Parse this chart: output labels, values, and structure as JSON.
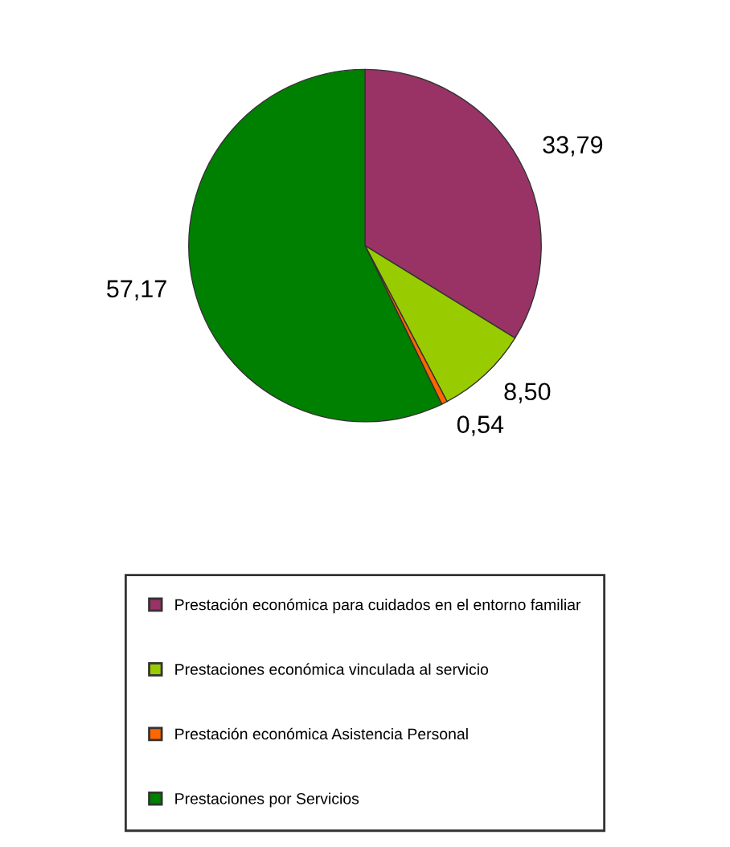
{
  "chart_data": {
    "type": "pie",
    "categories": [
      "Prestación económica para cuidados en el entorno familiar",
      "Prestaciones económica vinculada al servicio",
      "Prestación económica Asistencia Personal",
      "Prestaciones por Servicios"
    ],
    "values": [
      33.79,
      8.5,
      0.54,
      57.17
    ],
    "value_labels": [
      "33,79",
      "8,50",
      "0,54",
      "57,17"
    ],
    "colors": [
      "#993366",
      "#99cc00",
      "#ff6600",
      "#008000"
    ],
    "legend": "bottom"
  }
}
